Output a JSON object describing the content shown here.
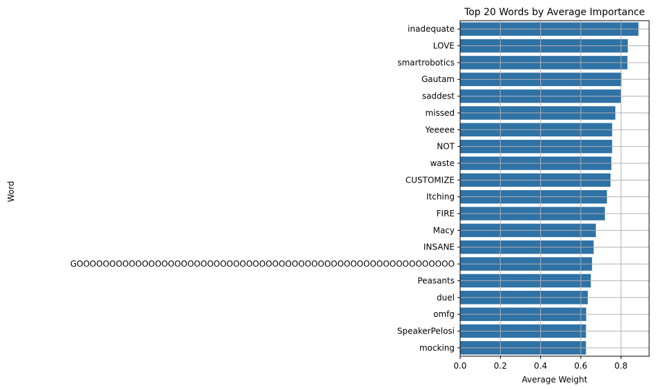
{
  "chart_data": {
    "type": "bar",
    "orientation": "horizontal",
    "title": "Top 20 Words by Average Importance",
    "xlabel": "Average Weight",
    "ylabel": "Word",
    "xlim": [
      0,
      0.94
    ],
    "xticks": [
      "0.0",
      "0.2",
      "0.4",
      "0.6",
      "0.8"
    ],
    "xtick_values": [
      0,
      0.2,
      0.4,
      0.6,
      0.8
    ],
    "grid": true,
    "bar_color": "#2f72a6",
    "categories": [
      "inadequate",
      "LOVE",
      "smartrobotics",
      "Gautam",
      "saddest",
      "missed",
      "Yeeeee",
      "NOT",
      "waste",
      "CUSTOMIZE",
      "Itching",
      "FIRE",
      "Macy",
      "INSANE",
      "GOOOOOOOOOOOOOOOOOOOOOOOOOOOOOOOOOOOOOOOOOOOOOOOOOOOOOOOOOO",
      "Peasants",
      "duel",
      "omfg",
      "SpeakerPelosi",
      "mocking"
    ],
    "values": [
      0.887,
      0.834,
      0.832,
      0.803,
      0.801,
      0.772,
      0.756,
      0.756,
      0.752,
      0.748,
      0.73,
      0.72,
      0.675,
      0.664,
      0.656,
      0.65,
      0.635,
      0.627,
      0.626,
      0.626
    ]
  }
}
